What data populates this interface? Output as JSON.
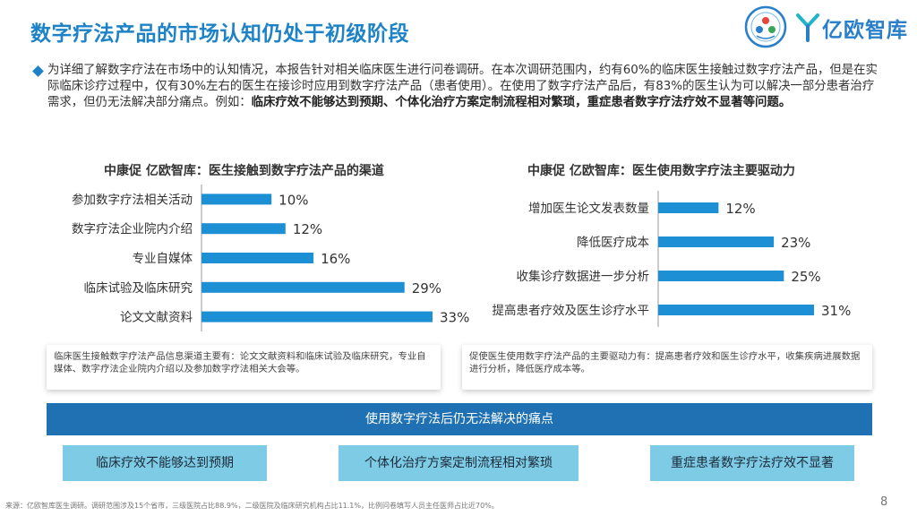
{
  "title": "数字疗法产品的市场认知仍处于初级阶段",
  "logo": {
    "brand": "亿欧智库",
    "seal_icon": "circular-seal-icon",
    "mark_icon": "yiou-y-mark-icon"
  },
  "intro": {
    "text_plain": "为详细了解数字疗法在市场中的认知情况，本报告针对相关临床医生进行问卷调研。在本次调研范围内，约有60%的临床医生接触过数字疗法产品，但是在实际临床诊疗过程中，仅有30%左右的医生在接诊时应用到数字疗法产品（患者使用）。在使用了数字疗法产品后，有83%的医生认为可以解决一部分患者治疗需求，但仍无法解决部分痛点。例如：",
    "text_bold": "临床疗效不能够达到预期、个体化治疗方案定制流程相对繁琐，重症患者数字疗法疗效不显著等问题。"
  },
  "chart_data": [
    {
      "type": "bar",
      "orientation": "horizontal",
      "title": "中康促 亿欧智库：医生接触到数字疗法产品的渠道",
      "categories": [
        "参加数字疗法相关活动",
        "数字疗法企业院内介绍",
        "专业自媒体",
        "临床试验及临床研究",
        "论文文献资料"
      ],
      "values": [
        10,
        12,
        16,
        29,
        33
      ],
      "labels": [
        "10%",
        "12%",
        "16%",
        "29%",
        "33%"
      ],
      "unit": "%",
      "xlim": [
        0,
        33
      ],
      "grid": false,
      "color": "#1d8fd5"
    },
    {
      "type": "bar",
      "orientation": "horizontal",
      "title": "中康促 亿欧智库：医生使用数字疗法主要驱动力",
      "categories": [
        "增加医生论文发表数量",
        "降低医疗成本",
        "收集诊疗数据进一步分析",
        "提高患者疗效及医生诊疗水平"
      ],
      "values": [
        12,
        23,
        25,
        31
      ],
      "labels": [
        "12%",
        "23%",
        "25%",
        "31%"
      ],
      "unit": "%",
      "xlim": [
        0,
        31
      ],
      "grid": false,
      "color": "#1d8fd5"
    }
  ],
  "notes": {
    "left": "临床医生接触数字疗法产品信息渠道主要有：论文文献资料和临床试验及临床研究，专业自媒体、数字疗法企业院内介绍以及参加数字疗法相关大会等。",
    "right": "促使医生使用数字疗法产品的主要驱动力有：提高患者疗效和医生诊疗水平，收集疾病进展数据进行分析，降低医疗成本等。"
  },
  "pain_points": {
    "banner": "使用数字疗法后仍无法解决的痛点",
    "items": [
      "临床疗效不能够达到预期",
      "个体化治疗方案定制流程相对繁琐",
      "重症患者数字疗法疗效不显著"
    ]
  },
  "footer": {
    "source": "来源：亿欧智库医生调研。调研范围涉及15个省市，三级医院占比88.9%，二级医院及临床研究机构占比11.1%，比例问卷填写人员主任医师占比近70%。",
    "page_number": "8"
  },
  "colors": {
    "title": "#1d83c6",
    "bar": "#1d8fd5",
    "banner": "#1f71b3",
    "pain_box": "#7ecbe5"
  }
}
